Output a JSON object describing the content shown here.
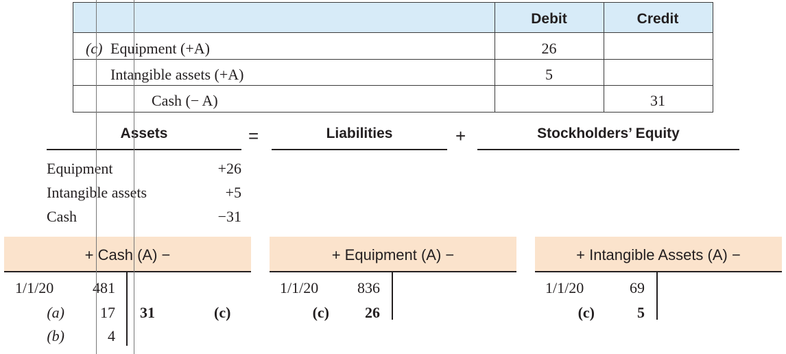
{
  "journal": {
    "headers": {
      "account": "",
      "debit": "Debit",
      "credit": "Credit"
    },
    "rows": [
      {
        "label": "(c)",
        "account": "Equipment (+A)",
        "debit": "26",
        "credit": ""
      },
      {
        "label": "",
        "account": "Intangible assets (+A)",
        "debit": "5",
        "credit": ""
      },
      {
        "label": "",
        "account": "Cash (− A)",
        "debit": "",
        "credit": "31"
      }
    ]
  },
  "equation": {
    "assets": "Assets",
    "equals": "=",
    "liabilities": "Liabilities",
    "plus": "+",
    "equity": "Stockholders’ Equity",
    "asset_rows": [
      {
        "name": "Equipment",
        "amount": "+26"
      },
      {
        "name": "Intangible assets",
        "amount": "+5"
      },
      {
        "name": "Cash",
        "amount": "−31"
      }
    ]
  },
  "t_accounts": {
    "cash": {
      "title": "+ Cash (A) −",
      "rows": [
        {
          "label": "1/1/20",
          "debit": "481",
          "credit": "",
          "credit_label": ""
        },
        {
          "label": "(a)",
          "debit": "17",
          "credit": "31",
          "credit_label": "(c)"
        },
        {
          "label": "(b)",
          "debit": "4",
          "credit": "",
          "credit_label": ""
        }
      ]
    },
    "equipment": {
      "title": "+ Equipment (A) −",
      "rows": [
        {
          "label": "1/1/20",
          "debit": "836"
        },
        {
          "label": "(c)",
          "debit": "26"
        }
      ]
    },
    "intangible": {
      "title": "+ Intangible Assets (A) −",
      "rows": [
        {
          "label": "1/1/20",
          "debit": "69"
        },
        {
          "label": "(c)",
          "debit": "5"
        }
      ]
    }
  }
}
